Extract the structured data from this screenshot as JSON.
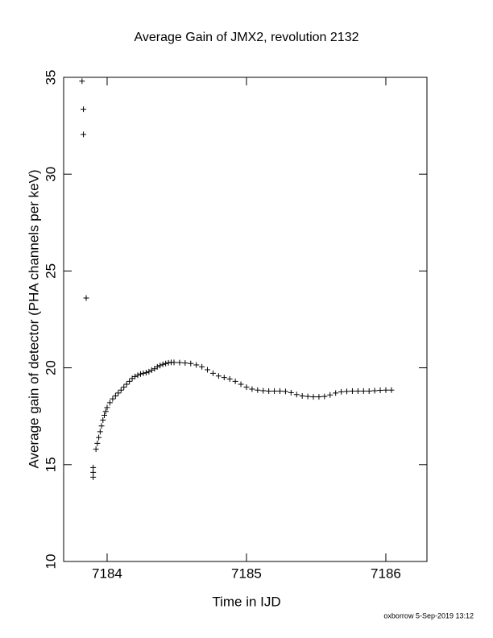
{
  "chart_data": {
    "type": "scatter",
    "title": "Average Gain of JMX2, revolution 2132",
    "x_label": "Time in IJD",
    "y_label": "Average gain of detector (PHA channels per keV)",
    "footer": "oxborrow  5-Sep-2019 13:12",
    "color": "#000000",
    "xlim": [
      7183.688,
      7186.295
    ],
    "xticks": [
      7184,
      7185,
      7186
    ],
    "ylim": [
      10,
      35
    ],
    "yticks": [
      10,
      15,
      20,
      25,
      30,
      35
    ],
    "series": [
      {
        "name": "gain",
        "x": [
          7183.82,
          7183.83,
          7183.83,
          7183.85,
          7183.9,
          7183.9,
          7183.9,
          7183.92,
          7183.93,
          7183.94,
          7183.95,
          7183.96,
          7183.97,
          7183.98,
          7183.99,
          7184.0,
          7184.02,
          7184.04,
          7184.06,
          7184.08,
          7184.1,
          7184.12,
          7184.14,
          7184.16,
          7184.18,
          7184.2,
          7184.22,
          7184.24,
          7184.26,
          7184.28,
          7184.3,
          7184.32,
          7184.34,
          7184.36,
          7184.38,
          7184.4,
          7184.42,
          7184.44,
          7184.46,
          7184.48,
          7184.52,
          7184.56,
          7184.6,
          7184.64,
          7184.68,
          7184.72,
          7184.76,
          7184.8,
          7184.84,
          7184.88,
          7184.92,
          7184.96,
          7185.0,
          7185.04,
          7185.08,
          7185.12,
          7185.16,
          7185.2,
          7185.24,
          7185.28,
          7185.32,
          7185.36,
          7185.4,
          7185.44,
          7185.48,
          7185.52,
          7185.56,
          7185.6,
          7185.64,
          7185.68,
          7185.72,
          7185.76,
          7185.8,
          7185.84,
          7185.88,
          7185.92,
          7185.96,
          7186.0,
          7186.04
        ],
        "values": [
          34.8,
          33.35,
          32.05,
          23.6,
          14.85,
          14.6,
          14.35,
          15.8,
          16.1,
          16.4,
          16.7,
          17.0,
          17.3,
          17.55,
          17.75,
          17.95,
          18.2,
          18.4,
          18.55,
          18.7,
          18.85,
          19.0,
          19.15,
          19.3,
          19.45,
          19.55,
          19.62,
          19.68,
          19.72,
          19.75,
          19.8,
          19.88,
          19.95,
          20.05,
          20.12,
          20.18,
          20.22,
          20.26,
          20.28,
          20.28,
          20.27,
          20.25,
          20.22,
          20.15,
          20.05,
          19.9,
          19.72,
          19.58,
          19.5,
          19.42,
          19.3,
          19.15,
          19.0,
          18.9,
          18.85,
          18.82,
          18.8,
          18.8,
          18.8,
          18.78,
          18.72,
          18.62,
          18.55,
          18.52,
          18.5,
          18.5,
          18.52,
          18.6,
          18.7,
          18.76,
          18.78,
          18.8,
          18.8,
          18.8,
          18.8,
          18.82,
          18.84,
          18.85,
          18.85
        ]
      }
    ]
  }
}
